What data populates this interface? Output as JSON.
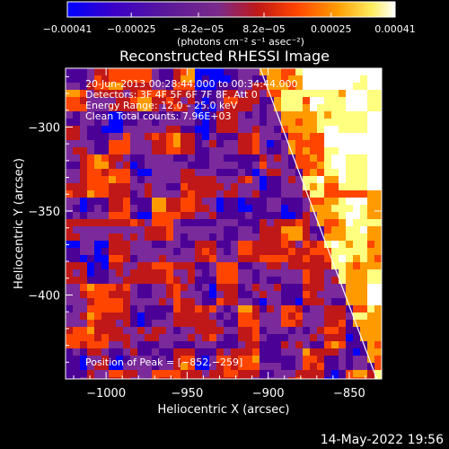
{
  "chart_data": {
    "type": "heatmap",
    "title": "Reconstructed RHESSI Image",
    "xlabel": "Heliocentric X (arcsec)",
    "ylabel": "Heliocentric Y (arcsec)",
    "xlim": [
      -1025,
      -830
    ],
    "ylim": [
      -450,
      -265
    ],
    "x_ticks": [
      -1000,
      -950,
      -900,
      -850
    ],
    "y_ticks": [
      -300,
      -350,
      -400
    ],
    "x_tick_labels": [
      "−1000",
      "−950",
      "−900",
      "−850"
    ],
    "y_tick_labels": [
      "−300",
      "−350",
      "−400"
    ],
    "colorbar": {
      "min": -0.00041,
      "max": 0.00041,
      "ticks": [
        -0.00041,
        -0.00025,
        -8.2e-05,
        8.2e-05,
        0.00025,
        0.00041
      ],
      "tick_labels": [
        "−0.00041",
        "−0.00025",
        "−8.2e−05",
        "8.2e−05",
        "0.00025",
        "0.00041"
      ],
      "unit_label": "(photons cm⁻² s⁻¹ asec⁻²)",
      "colors": [
        "#0000ff",
        "#4b0096",
        "#7a2a9a",
        "#c01818",
        "#ff4500",
        "#ff9a00",
        "#ffff80",
        "#ffffff"
      ]
    },
    "annotations": [
      "20‑Jun‑2013 00:28:44.000 to 00:34:44.000",
      "Detectors: 3F 4F 5F 6F 7F 8F, Att 0",
      "Energy Range: 12.0 – 25.0 keV",
      "Clean     Total counts: 7.96E+03"
    ],
    "peak": {
      "label": "Position of Peak = [−852,−259]",
      "x": -852,
      "y": -259
    },
    "limb_line": [
      [
        -905,
        -265
      ],
      [
        -833,
        -450
      ]
    ],
    "grid": false,
    "legend": "none"
  },
  "footer": {
    "timestamp": "14‑May‑2022 19:56"
  }
}
